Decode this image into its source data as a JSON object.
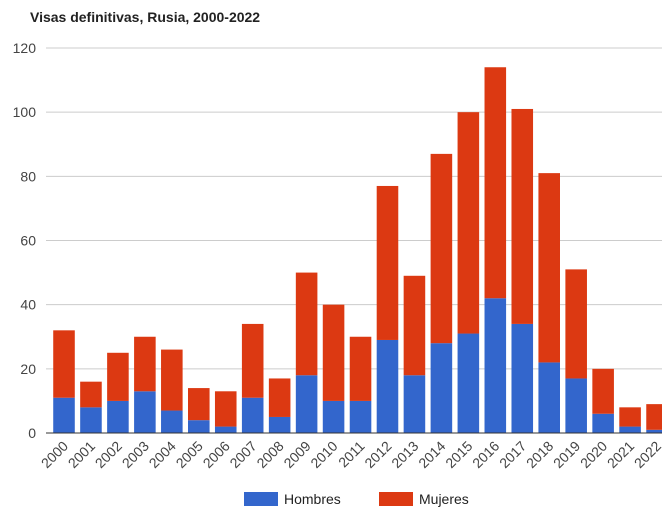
{
  "chart_data": {
    "type": "bar",
    "stacked": true,
    "title": "Visas definitivas, Rusia, 2000-2022",
    "xlabel": "",
    "ylabel": "",
    "ylim": [
      0,
      120
    ],
    "yticks": [
      0,
      20,
      40,
      60,
      80,
      100,
      120
    ],
    "grid": true,
    "legend_position": "bottom",
    "categories": [
      "2000",
      "2001",
      "2002",
      "2003",
      "2004",
      "2005",
      "2006",
      "2007",
      "2008",
      "2009",
      "2010",
      "2011",
      "2012",
      "2013",
      "2014",
      "2015",
      "2016",
      "2017",
      "2018",
      "2019",
      "2020",
      "2021",
      "2022"
    ],
    "series": [
      {
        "name": "Hombres",
        "color": "#3366cc",
        "values": [
          11,
          8,
          10,
          13,
          7,
          4,
          2,
          11,
          5,
          18,
          10,
          10,
          29,
          18,
          28,
          31,
          42,
          34,
          22,
          17,
          6,
          2,
          1
        ]
      },
      {
        "name": "Mujeres",
        "color": "#dc3912",
        "values": [
          21,
          8,
          15,
          17,
          19,
          10,
          11,
          23,
          12,
          32,
          30,
          20,
          48,
          31,
          59,
          69,
          72,
          67,
          59,
          34,
          14,
          6,
          8
        ]
      }
    ]
  }
}
